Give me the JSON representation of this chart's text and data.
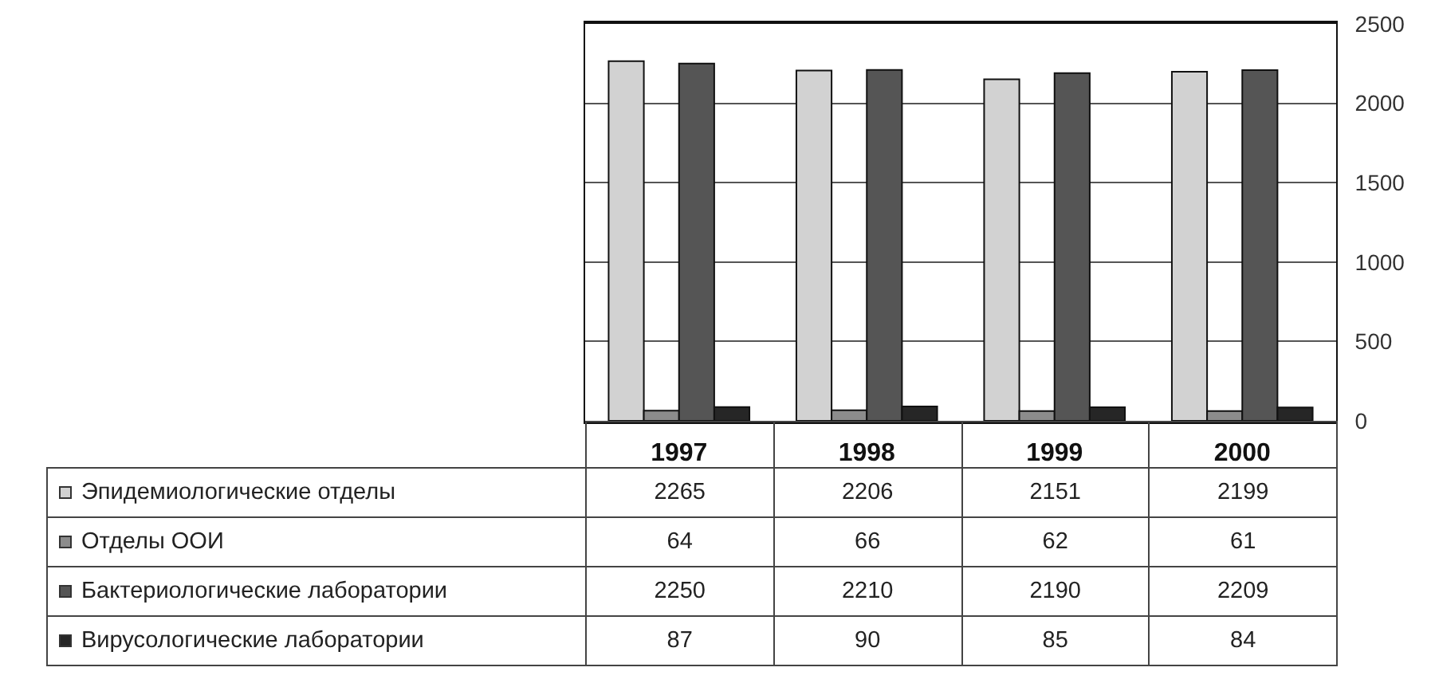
{
  "chart_data": {
    "type": "bar",
    "categories": [
      "1997",
      "1998",
      "1999",
      "2000"
    ],
    "series": [
      {
        "name": "Эпидемиологические отделы",
        "color": "#d2d2d2",
        "values": [
          2265,
          2206,
          2151,
          2199
        ]
      },
      {
        "name": "Отделы ООИ",
        "color": "#8c8c8c",
        "values": [
          64,
          66,
          62,
          61
        ]
      },
      {
        "name": "Бактериологические лаборатории",
        "color": "#555555",
        "values": [
          2250,
          2210,
          2190,
          2209
        ]
      },
      {
        "name": "Вирусологические лаборатории",
        "color": "#262626",
        "values": [
          87,
          90,
          85,
          84
        ]
      }
    ],
    "ylim": [
      0,
      2500
    ],
    "yticks": [
      0,
      500,
      1000,
      1500,
      2000,
      2500
    ],
    "grid": "y",
    "legend": "bottom left",
    "data_labels": true
  }
}
